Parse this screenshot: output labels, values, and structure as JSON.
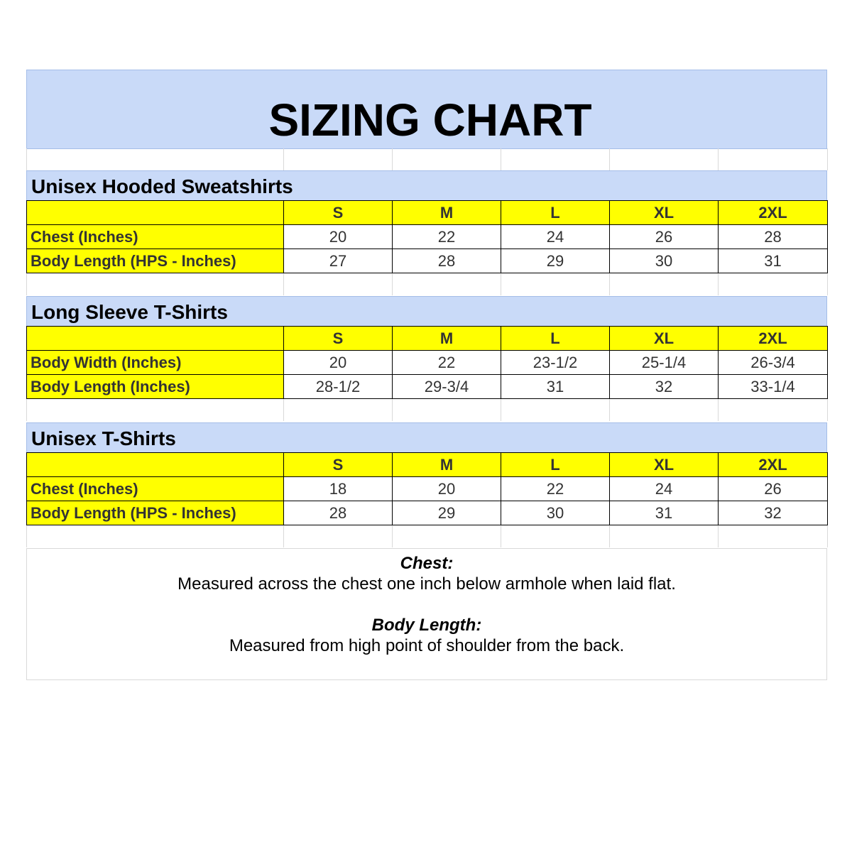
{
  "title": "SIZING CHART",
  "colors": {
    "header_blue": "#c9daf8",
    "label_yellow": "#ffff00"
  },
  "sizes": [
    "S",
    "M",
    "L",
    "XL",
    "2XL"
  ],
  "sections": [
    {
      "title": "Unisex Hooded Sweatshirts",
      "rows": [
        {
          "label": "Chest (Inches)",
          "values": [
            "20",
            "22",
            "24",
            "26",
            "28"
          ]
        },
        {
          "label": "Body Length (HPS - Inches)",
          "values": [
            "27",
            "28",
            "29",
            "30",
            "31"
          ]
        }
      ]
    },
    {
      "title": "Long Sleeve T-Shirts",
      "rows": [
        {
          "label": "Body Width (Inches)",
          "values": [
            "20",
            "22",
            "23-1/2",
            "25-1/4",
            "26-3/4"
          ]
        },
        {
          "label": "Body Length (Inches)",
          "values": [
            "28-1/2",
            "29-3/4",
            "31",
            "32",
            "33-1/4"
          ]
        }
      ]
    },
    {
      "title": "Unisex T-Shirts",
      "rows": [
        {
          "label": "Chest (Inches)",
          "values": [
            "18",
            "20",
            "22",
            "24",
            "26"
          ]
        },
        {
          "label": "Body Length (HPS - Inches)",
          "values": [
            "28",
            "29",
            "30",
            "31",
            "32"
          ]
        }
      ]
    }
  ],
  "notes": {
    "chest_title": "Chest:",
    "chest_text": "Measured across the chest one inch below armhole when laid flat.",
    "length_title": "Body Length:",
    "length_text": "Measured from high point of shoulder from the back."
  }
}
